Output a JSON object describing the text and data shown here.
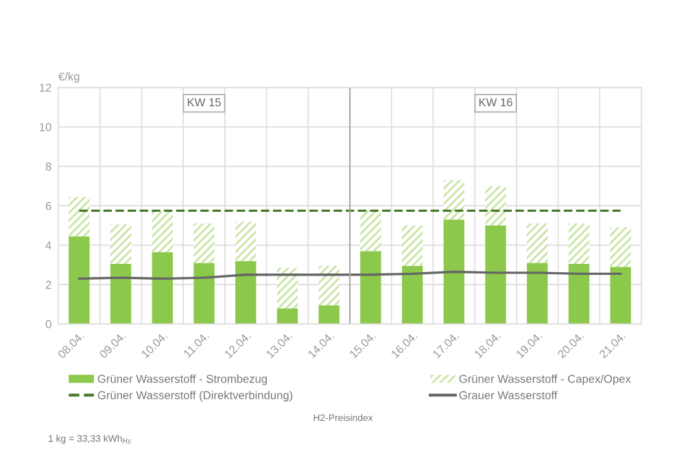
{
  "chart_data": {
    "type": "bar",
    "stacked": true,
    "ylabel": "€/kg",
    "categories": [
      "08.04.",
      "09.04.",
      "10.04.",
      "11.04.",
      "12.04.",
      "13.04.",
      "14.04.",
      "15.04.",
      "16.04.",
      "17.04.",
      "18.04.",
      "19.04.",
      "20.04.",
      "21.04."
    ],
    "series": [
      {
        "name": "Grüner Wasserstoff - Strombezug",
        "color": "#8cc84b",
        "values": [
          4.45,
          3.05,
          3.65,
          3.1,
          3.2,
          0.8,
          0.95,
          3.7,
          2.95,
          5.3,
          5.0,
          3.1,
          3.05,
          2.9
        ]
      },
      {
        "name": "Grüner Wasserstoff - Capex/Opex",
        "color": "#c8e4a4",
        "values": [
          2.0,
          2.0,
          2.05,
          2.0,
          2.0,
          2.05,
          2.0,
          2.05,
          2.05,
          2.0,
          2.0,
          2.0,
          2.05,
          2.0
        ]
      },
      {
        "name": "Grüner Wasserstoff (Direktverbindung)",
        "type": "line",
        "line_style": "dashed",
        "color": "#4a7a2a",
        "values": [
          5.75,
          5.75,
          5.75,
          5.75,
          5.75,
          5.75,
          5.75,
          5.75,
          5.75,
          5.75,
          5.75,
          5.75,
          5.75,
          5.75
        ]
      },
      {
        "name": "Grauer Wasserstoff",
        "type": "line",
        "line_style": "solid",
        "color": "#666666",
        "values": [
          2.3,
          2.35,
          2.3,
          2.35,
          2.5,
          2.5,
          2.5,
          2.5,
          2.55,
          2.65,
          2.6,
          2.6,
          2.55,
          2.55
        ]
      }
    ],
    "ref_lines": [
      {
        "axis": "x",
        "value": "15.04.",
        "color": "#aaaaaa"
      }
    ],
    "ylim": [
      0,
      12
    ],
    "yticks": [
      0,
      2,
      4,
      6,
      8,
      10,
      12
    ],
    "grid": true,
    "legend": "bottom",
    "annotations": [
      {
        "text": "KW 15",
        "x": "11.04.",
        "y": 11.2
      },
      {
        "text": "KW 16",
        "x": "18.04.",
        "y": 11.2
      },
      "H2-Preisindex",
      "1 kg = 33,33 kWh$_{Hs}$"
    ]
  }
}
